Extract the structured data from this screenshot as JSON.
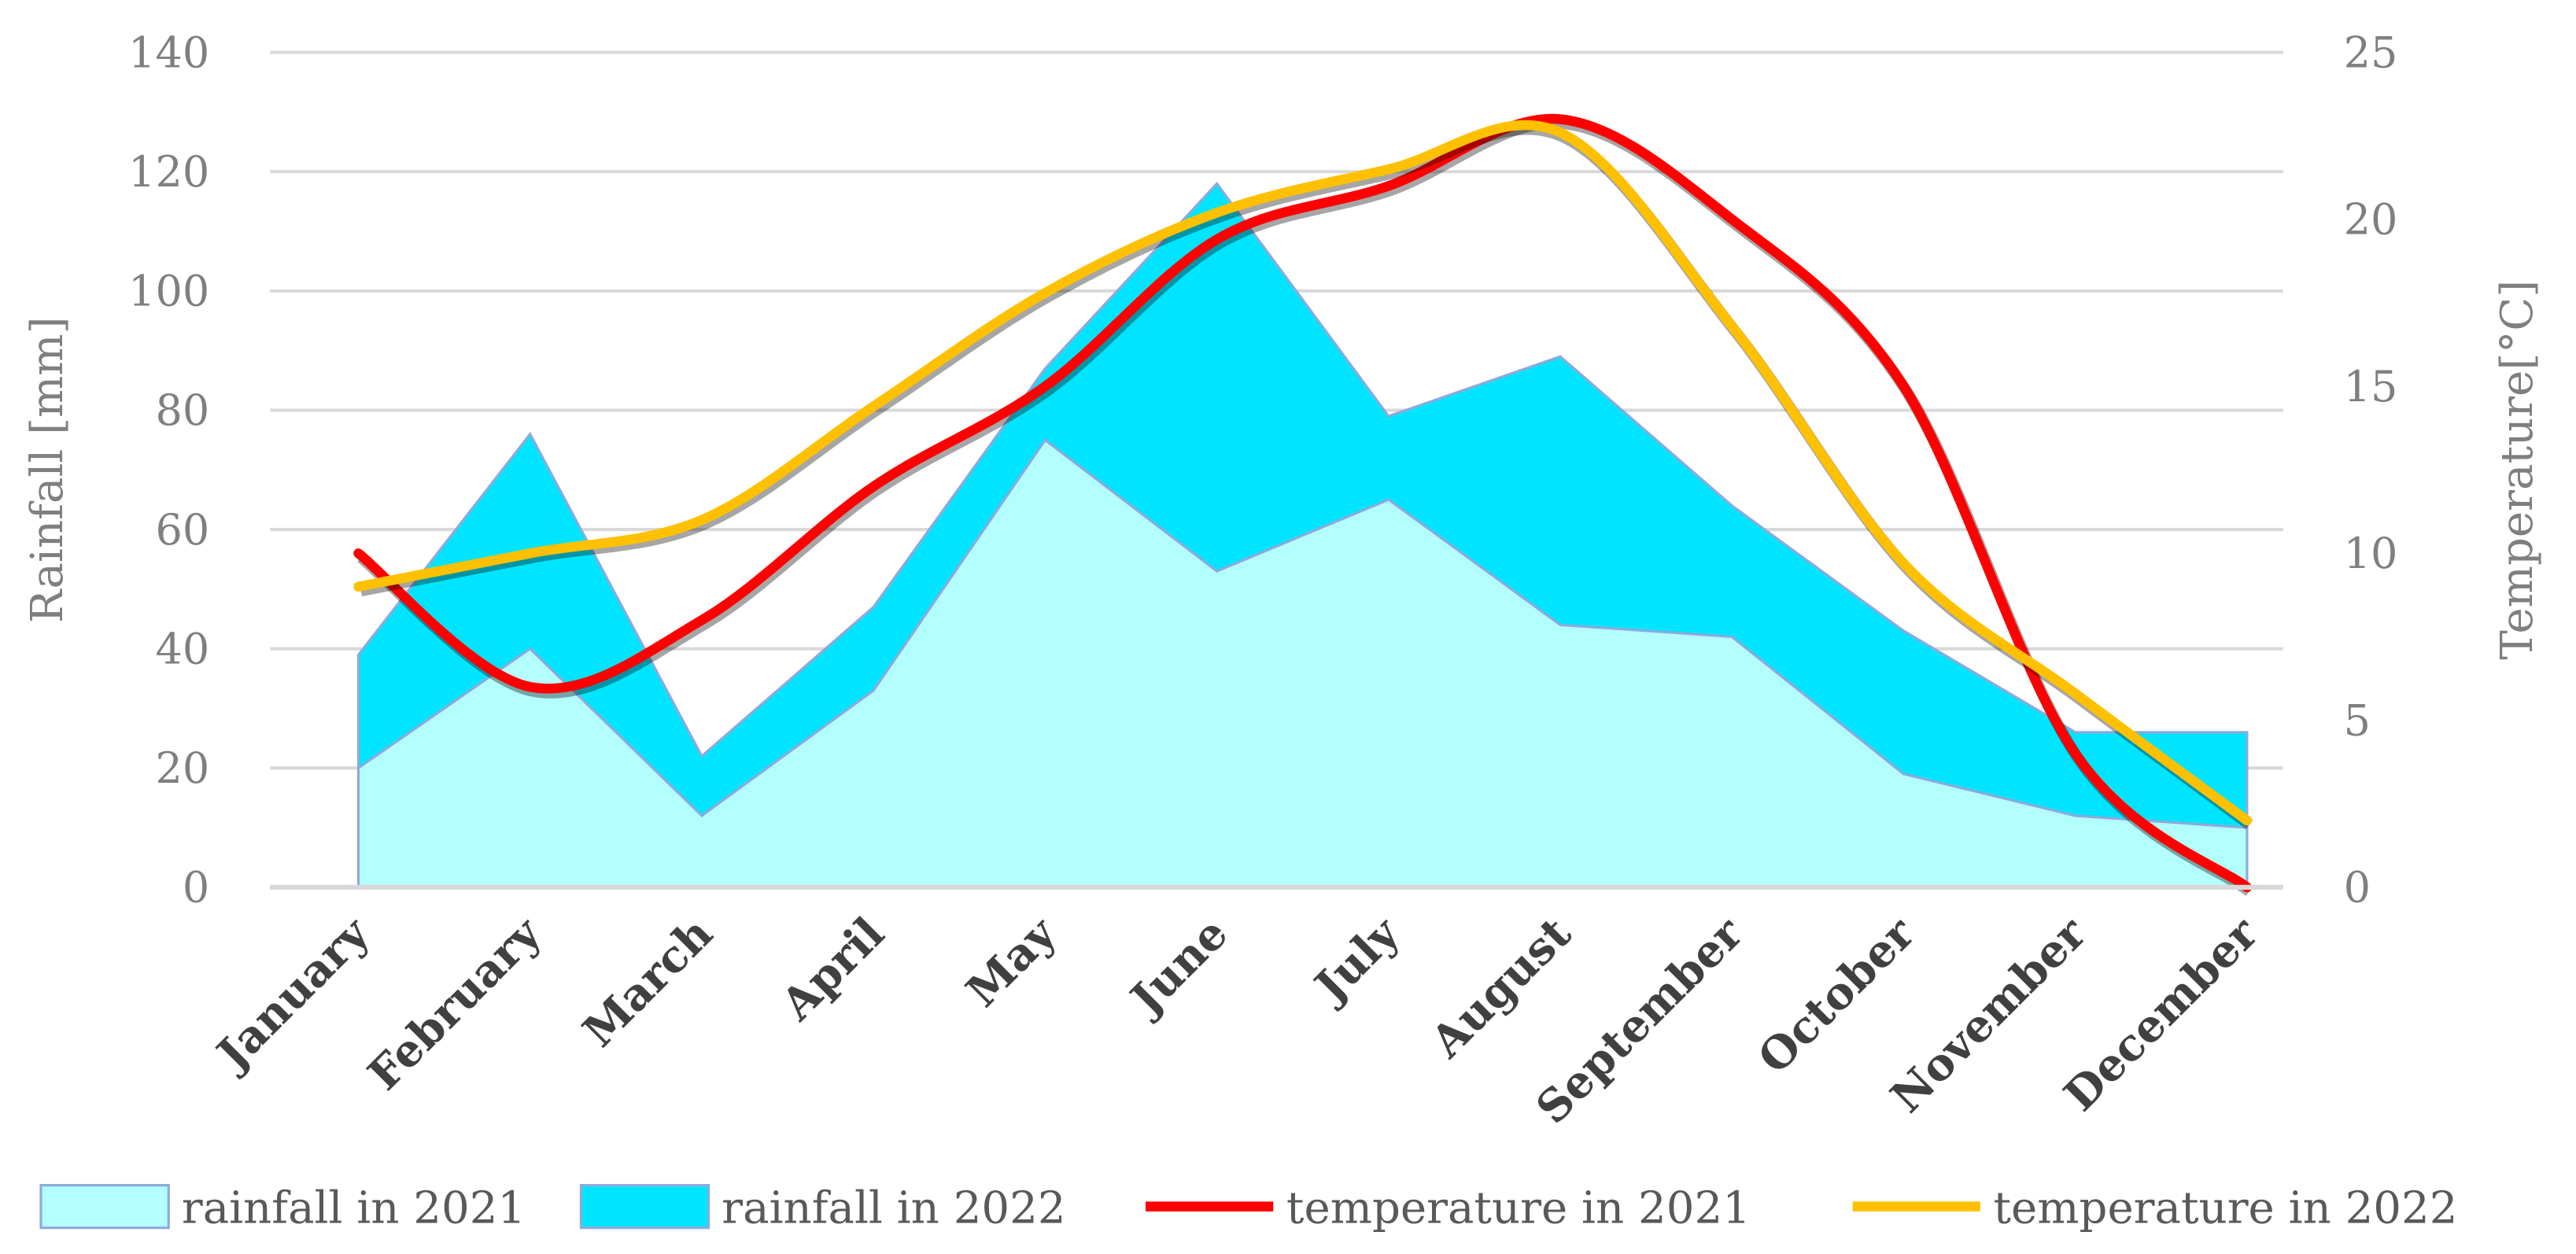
{
  "chart_data": {
    "type": "area+line",
    "categories": [
      "January",
      "February",
      "March",
      "April",
      "May",
      "June",
      "July",
      "August",
      "September",
      "October",
      "November",
      "December"
    ],
    "series": [
      {
        "name": "rainfall in 2021",
        "type": "area",
        "axis": "left",
        "color": "#b3ffff",
        "values": [
          20,
          40,
          12,
          33,
          75,
          53,
          65,
          44,
          42,
          19,
          12,
          10
        ]
      },
      {
        "name": "rainfall in 2022",
        "type": "area",
        "axis": "left",
        "color": "#00e5ff",
        "values": [
          39,
          76,
          22,
          47,
          87,
          118,
          79,
          89,
          64,
          43,
          26,
          26
        ]
      },
      {
        "name": "temperature in 2021",
        "type": "line",
        "axis": "right",
        "color": "#ff0000",
        "values": [
          10,
          6,
          8,
          12,
          15,
          19.4,
          21,
          23,
          20,
          15,
          4,
          0
        ]
      },
      {
        "name": "temperature in 2022",
        "type": "line",
        "axis": "right",
        "color": "#ffc000",
        "values": [
          9,
          10,
          11,
          14.4,
          17.8,
          20.2,
          21.5,
          22.6,
          16.8,
          9.7,
          5.8,
          2
        ]
      }
    ],
    "ylabel": "Rainfall [mm]",
    "y2label": "Temperature[°C]",
    "ylim": [
      0,
      140
    ],
    "y2lim": [
      0,
      25
    ],
    "yticks": [
      "0",
      "20",
      "40",
      "60",
      "80",
      "100",
      "120",
      "140"
    ],
    "y2ticks": [
      "0",
      "5",
      "10",
      "15",
      "20",
      "25"
    ],
    "grid": true,
    "legend": "bottom"
  }
}
